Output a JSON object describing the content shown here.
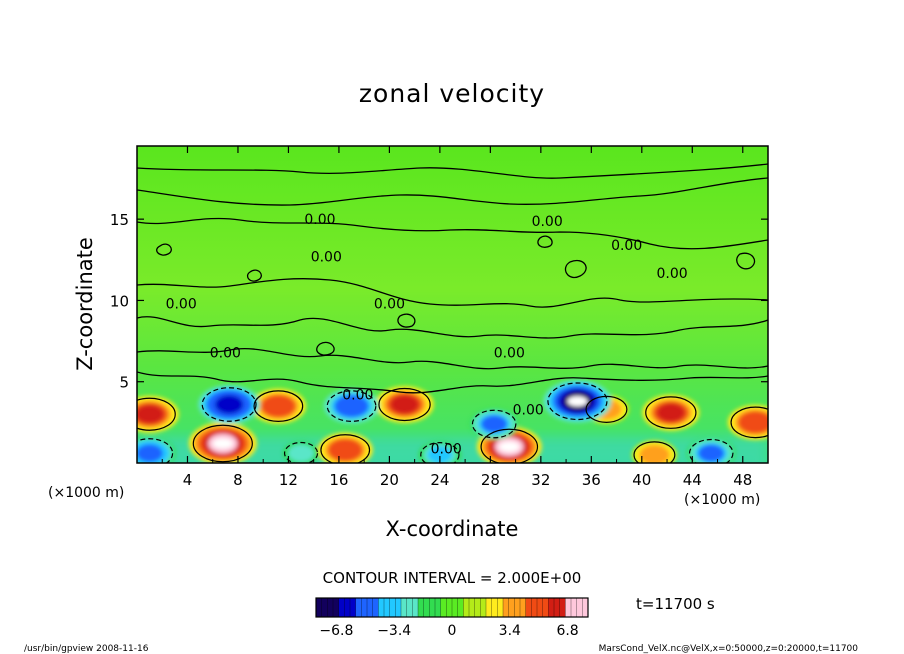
{
  "chart_data": {
    "type": "heatmap",
    "title": "zonal velocity",
    "xlabel": "X-coordinate",
    "ylabel": "Z-coordinate",
    "x_unit_note": "(×1000 m)",
    "z_unit_note": "(×1000 m)",
    "xlim": [
      0,
      50
    ],
    "ylim": [
      0,
      19.5
    ],
    "x_ticks": [
      "4",
      "8",
      "12",
      "16",
      "20",
      "24",
      "28",
      "32",
      "36",
      "40",
      "44",
      "48"
    ],
    "y_ticks": [
      "5",
      "10",
      "15"
    ],
    "contour_interval_text": "CONTOUR INTERVAL = 2.000E+00",
    "contour_labels": [
      "0.00",
      "0.00",
      "0.00",
      "0.00",
      "0.00",
      "0.00",
      "0.00",
      "0.00",
      "0.00",
      "0.00",
      "0.00",
      "0.00"
    ],
    "colorbar": {
      "range": [
        -8,
        8
      ],
      "tick_labels": [
        "−6.8",
        "−3.4",
        "0",
        "3.4",
        "6.8"
      ],
      "colors": [
        "#12005c",
        "#0000c8",
        "#1e64ff",
        "#22c8ff",
        "#5ae6c8",
        "#32dc50",
        "#5aeb23",
        "#b4eb19",
        "#ffeb1e",
        "#ffa01e",
        "#f04b14",
        "#d21e14",
        "#ffc8dc"
      ]
    },
    "features": [
      {
        "x": 6.8,
        "z": 1.2,
        "value": 7.5
      },
      {
        "x": 29.5,
        "z": 1.0,
        "value": 7.0
      },
      {
        "x": 16.5,
        "z": 0.8,
        "value": 5.5
      },
      {
        "x": 1.0,
        "z": 3.0,
        "value": 6.0
      },
      {
        "x": 11.2,
        "z": 3.5,
        "value": 5.5
      },
      {
        "x": 21.2,
        "z": 3.6,
        "value": 6.0
      },
      {
        "x": 42.3,
        "z": 3.1,
        "value": 5.8
      },
      {
        "x": 49.0,
        "z": 2.5,
        "value": 5.5
      },
      {
        "x": 37.2,
        "z": 3.3,
        "value": 4.0
      },
      {
        "x": 41.0,
        "z": 0.5,
        "value": 4.0
      },
      {
        "x": 7.3,
        "z": 3.6,
        "value": -6.5
      },
      {
        "x": 17.0,
        "z": 3.5,
        "value": -5.5
      },
      {
        "x": 34.9,
        "z": 3.8,
        "value": -7.5
      },
      {
        "x": 28.3,
        "z": 2.4,
        "value": -4.5
      },
      {
        "x": 1.0,
        "z": 0.6,
        "value": -5.0
      },
      {
        "x": 24.0,
        "z": 0.5,
        "value": -3.5
      },
      {
        "x": 45.5,
        "z": 0.6,
        "value": -4.5
      },
      {
        "x": 13.0,
        "z": 0.6,
        "value": -2.5
      }
    ],
    "time_label": "t=11700 s"
  },
  "footer": {
    "left": "/usr/bin/gpview   2008-11-16",
    "right": "MarsCond_VelX.nc@VelX,x=0:50000,z=0:20000,t=11700"
  }
}
